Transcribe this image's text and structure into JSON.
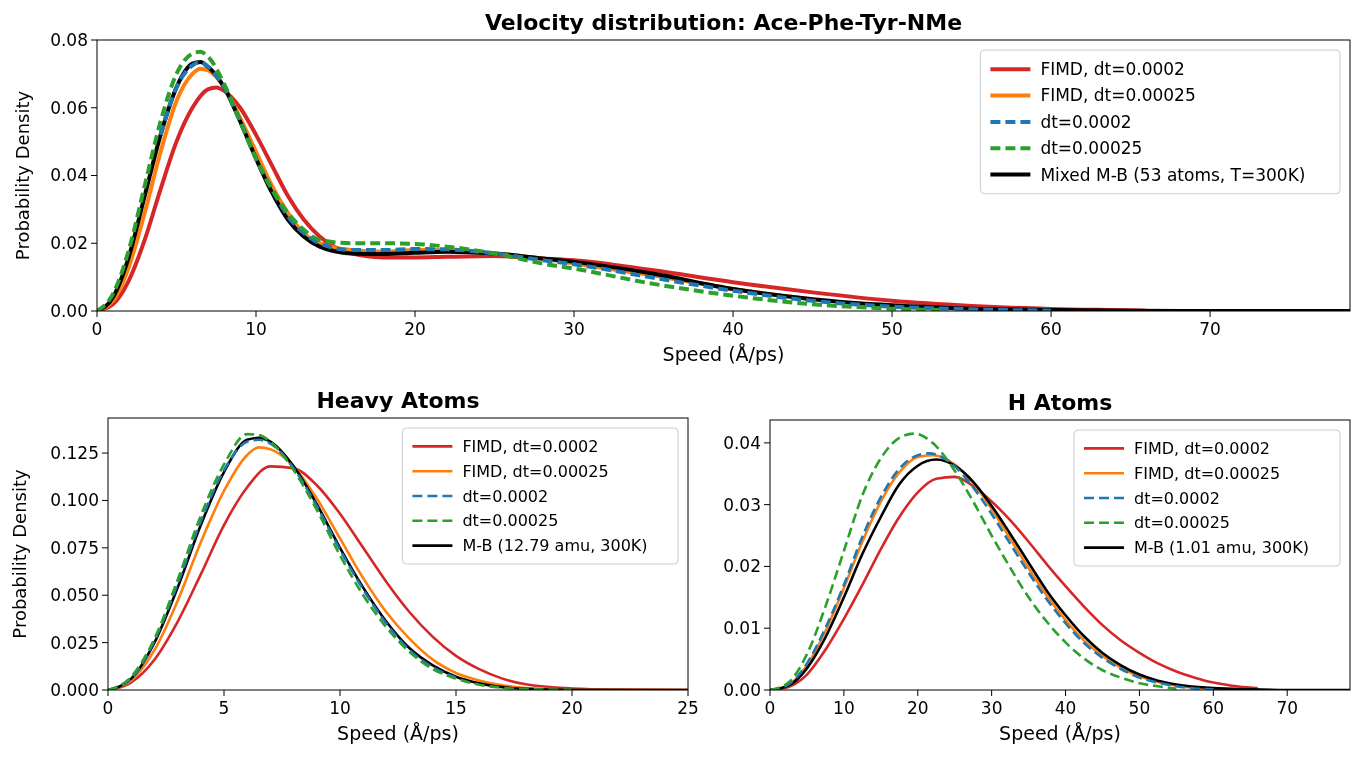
{
  "chart_data": [
    {
      "type": "line",
      "title": "Velocity distribution: Ace-Phe-Tyr-NMe",
      "xlabel": "Speed (Å/ps)",
      "ylabel": "Probability Density",
      "xlim": [
        0,
        78.8
      ],
      "ylim": [
        0,
        0.08
      ],
      "xticks": [
        0,
        10,
        20,
        30,
        40,
        50,
        60,
        70
      ],
      "yticks": [
        {
          "value": 0,
          "label": "0.00"
        },
        {
          "value": 0.02,
          "label": "0.02"
        },
        {
          "value": 0.04,
          "label": "0.04"
        },
        {
          "value": 0.06,
          "label": "0.06"
        },
        {
          "value": 0.08,
          "label": "0.08"
        }
      ],
      "grid": false,
      "legend": "top right",
      "marker": "none",
      "series": [
        {
          "name": "FIMD, dt=0.0002",
          "color": "#d62728",
          "line_style": "solid",
          "x": [
            0,
            1,
            2,
            3,
            4,
            5,
            6,
            7,
            7.5,
            8,
            9,
            10,
            11,
            12,
            13,
            14,
            16,
            18,
            20,
            22,
            25,
            28,
            30,
            35,
            40,
            45,
            50,
            55,
            60,
            65,
            66
          ],
          "values": [
            0,
            0.002,
            0.009,
            0.021,
            0.036,
            0.05,
            0.06,
            0.0655,
            0.066,
            0.065,
            0.06,
            0.052,
            0.043,
            0.034,
            0.027,
            0.022,
            0.017,
            0.0158,
            0.0158,
            0.016,
            0.0162,
            0.0155,
            0.015,
            0.012,
            0.0085,
            0.0055,
            0.003,
            0.0015,
            0.0006,
            0.0002,
            0.0001
          ]
        },
        {
          "name": "FIMD, dt=0.00025",
          "color": "#ff7f0e",
          "line_style": "solid",
          "x": [
            0,
            1,
            2,
            3,
            4,
            5,
            6,
            6.5,
            7,
            8,
            9,
            10,
            11,
            12,
            13,
            14,
            16,
            18,
            20,
            22,
            25,
            28,
            30,
            35,
            40,
            45
          ],
          "values": [
            0,
            0.003,
            0.013,
            0.029,
            0.047,
            0.062,
            0.07,
            0.0715,
            0.071,
            0.066,
            0.057,
            0.047,
            0.037,
            0.029,
            0.023,
            0.02,
            0.018,
            0.0175,
            0.018,
            0.018,
            0.017,
            0.0155,
            0.014,
            0.0105,
            0.0065,
            0.0035
          ]
        },
        {
          "name": "dt=0.0002",
          "color": "#1f77b4",
          "line_style": "dashed",
          "x": [
            4,
            5,
            6,
            6.5,
            7,
            8,
            9,
            10,
            11,
            12,
            13,
            14,
            16,
            18,
            20,
            22,
            25,
            28,
            30,
            35,
            40,
            45,
            50,
            55,
            60
          ],
          "values": [
            0.052,
            0.066,
            0.0725,
            0.0735,
            0.072,
            0.066,
            0.056,
            0.045,
            0.036,
            0.028,
            0.023,
            0.02,
            0.018,
            0.018,
            0.0183,
            0.0182,
            0.017,
            0.015,
            0.0138,
            0.0098,
            0.006,
            0.003,
            0.0013,
            0.0005,
            0.0001
          ]
        },
        {
          "name": "dt=0.00025",
          "color": "#2ca02c",
          "line_style": "dashed",
          "x": [
            0,
            1,
            2,
            3,
            4,
            5,
            6,
            6.5,
            7,
            8,
            9,
            10,
            11,
            12,
            13,
            14,
            16,
            18,
            20,
            22,
            25,
            28,
            30,
            35,
            40,
            45,
            50,
            53
          ],
          "values": [
            0,
            0.005,
            0.018,
            0.037,
            0.056,
            0.07,
            0.076,
            0.0765,
            0.075,
            0.067,
            0.056,
            0.045,
            0.036,
            0.029,
            0.024,
            0.021,
            0.02,
            0.02,
            0.0198,
            0.019,
            0.017,
            0.014,
            0.0125,
            0.008,
            0.0045,
            0.002,
            0.0007,
            0.0003
          ]
        },
        {
          "name": "Mixed M-B (53 atoms, T=300K)",
          "color": "#000000",
          "line_style": "solid",
          "x": [
            0,
            1,
            2,
            3,
            4,
            5,
            6,
            6.5,
            7,
            8,
            9,
            10,
            11,
            12,
            13,
            14,
            16,
            18,
            20,
            22,
            25,
            28,
            30,
            35,
            40,
            45,
            50,
            55,
            60,
            65,
            70,
            78.8
          ],
          "values": [
            0,
            0.004,
            0.016,
            0.034,
            0.052,
            0.066,
            0.073,
            0.0735,
            0.072,
            0.066,
            0.056,
            0.045,
            0.035,
            0.027,
            0.022,
            0.019,
            0.017,
            0.0168,
            0.0172,
            0.0175,
            0.017,
            0.0155,
            0.0145,
            0.011,
            0.0065,
            0.0035,
            0.0017,
            0.0007,
            0.0003,
            0.0001,
            0,
            0
          ]
        }
      ]
    },
    {
      "type": "line",
      "title": "Heavy Atoms",
      "xlabel": "Speed (Å/ps)",
      "ylabel": "Probability Density",
      "xlim": [
        0,
        25
      ],
      "ylim": [
        0,
        0.1435
      ],
      "xticks": [
        0,
        5,
        10,
        15,
        20,
        25
      ],
      "yticks": [
        {
          "value": 0,
          "label": "0.000"
        },
        {
          "value": 0.025,
          "label": "0.025"
        },
        {
          "value": 0.05,
          "label": "0.050"
        },
        {
          "value": 0.075,
          "label": "0.075"
        },
        {
          "value": 0.1,
          "label": "0.100"
        },
        {
          "value": 0.125,
          "label": "0.125"
        }
      ],
      "grid": false,
      "legend": "top right",
      "marker": "none",
      "series": [
        {
          "name": "FIMD, dt=0.0002",
          "color": "#d62728",
          "line_style": "solid",
          "x": [
            0,
            1,
            2,
            3,
            4,
            5,
            6,
            7,
            8,
            9,
            10,
            11,
            12,
            13,
            14,
            15,
            16,
            17,
            18,
            20,
            22,
            25
          ],
          "values": [
            0,
            0.004,
            0.016,
            0.036,
            0.061,
            0.087,
            0.107,
            0.118,
            0.117,
            0.108,
            0.093,
            0.075,
            0.057,
            0.041,
            0.028,
            0.018,
            0.011,
            0.006,
            0.003,
            0.0008,
            0.0002,
            0
          ]
        },
        {
          "name": "FIMD, dt=0.00025",
          "color": "#ff7f0e",
          "line_style": "solid",
          "x": [
            0,
            1,
            2,
            3,
            4,
            5,
            6,
            6.5,
            7,
            8,
            9,
            10,
            11,
            12,
            13,
            14,
            15,
            16,
            17,
            18,
            20,
            25
          ],
          "values": [
            0,
            0.005,
            0.021,
            0.047,
            0.078,
            0.105,
            0.124,
            0.128,
            0.127,
            0.118,
            0.101,
            0.08,
            0.059,
            0.041,
            0.027,
            0.016,
            0.009,
            0.005,
            0.0025,
            0.001,
            0.0002,
            0
          ]
        },
        {
          "name": "dt=0.0002",
          "color": "#1f77b4",
          "line_style": "dashed",
          "x": [
            0,
            1,
            2,
            3,
            4,
            5,
            6,
            6.5,
            7,
            8,
            9,
            10,
            11,
            12,
            13,
            14,
            15
          ],
          "values": [
            0,
            0.006,
            0.026,
            0.056,
            0.089,
            0.116,
            0.131,
            0.132,
            0.13,
            0.117,
            0.097,
            0.074,
            0.053,
            0.035,
            0.021,
            0.012,
            0.0065
          ]
        },
        {
          "name": "dt=0.00025",
          "color": "#2ca02c",
          "line_style": "dashed",
          "x": [
            0,
            1,
            2,
            3,
            4,
            5,
            6,
            6.5,
            7,
            8,
            9,
            10,
            11,
            12,
            13,
            14,
            15,
            16,
            18,
            20
          ],
          "values": [
            0,
            0.007,
            0.027,
            0.058,
            0.092,
            0.119,
            0.135,
            0.1345,
            0.131,
            0.116,
            0.095,
            0.071,
            0.05,
            0.033,
            0.02,
            0.011,
            0.006,
            0.0028,
            0.0005,
            0.0001
          ]
        },
        {
          "name": "M-B (12.79 amu, 300K)",
          "color": "#000000",
          "line_style": "solid",
          "x": [
            0,
            1,
            2,
            3,
            4,
            5,
            6,
            6.5,
            7,
            8,
            9,
            10,
            11,
            12,
            13,
            14,
            15,
            16,
            17,
            18,
            20,
            25
          ],
          "values": [
            0,
            0.006,
            0.025,
            0.054,
            0.087,
            0.115,
            0.132,
            0.133,
            0.131,
            0.118,
            0.098,
            0.075,
            0.054,
            0.036,
            0.022,
            0.013,
            0.007,
            0.0035,
            0.0015,
            0.0006,
            0.0001,
            0
          ]
        }
      ]
    },
    {
      "type": "line",
      "title": "H Atoms",
      "xlabel": "Speed (Å/ps)",
      "xlim": [
        0,
        78.5
      ],
      "ylim": [
        0,
        0.0437
      ],
      "xticks": [
        0,
        10,
        20,
        30,
        40,
        50,
        60,
        70
      ],
      "yticks": [
        {
          "value": 0,
          "label": "0.00"
        },
        {
          "value": 0.01,
          "label": "0.01"
        },
        {
          "value": 0.02,
          "label": "0.02"
        },
        {
          "value": 0.03,
          "label": "0.03"
        },
        {
          "value": 0.04,
          "label": "0.04"
        }
      ],
      "grid": false,
      "legend": "top right",
      "marker": "none",
      "series": [
        {
          "name": "FIMD, dt=0.0002",
          "color": "#d62728",
          "line_style": "solid",
          "x": [
            0,
            2.5,
            5,
            7.5,
            10,
            12.5,
            15,
            17.5,
            20,
            22.5,
            25,
            27.5,
            30,
            32.5,
            35,
            37.5,
            40,
            42.5,
            45,
            47.5,
            50,
            52.5,
            55,
            57.5,
            60,
            62.5,
            65,
            66
          ],
          "values": [
            0,
            0.0005,
            0.0025,
            0.0065,
            0.0115,
            0.017,
            0.0228,
            0.028,
            0.032,
            0.0342,
            0.0345,
            0.033,
            0.0305,
            0.0275,
            0.024,
            0.0203,
            0.0168,
            0.0135,
            0.0105,
            0.008,
            0.006,
            0.0043,
            0.003,
            0.002,
            0.0012,
            0.0007,
            0.0004,
            0.0003
          ]
        },
        {
          "name": "FIMD, dt=0.00025",
          "color": "#ff7f0e",
          "line_style": "solid",
          "x": [
            0,
            2.5,
            5,
            7.5,
            10,
            12.5,
            15,
            17.5,
            20,
            22,
            25,
            27.5,
            30,
            32.5,
            35,
            37.5,
            40,
            42.5,
            45,
            47.5,
            50,
            52.5,
            55,
            60,
            63
          ],
          "values": [
            0,
            0.0008,
            0.004,
            0.0095,
            0.0165,
            0.024,
            0.0305,
            0.0352,
            0.0377,
            0.038,
            0.0365,
            0.0335,
            0.0293,
            0.0245,
            0.0197,
            0.0152,
            0.0113,
            0.008,
            0.0055,
            0.0036,
            0.0022,
            0.0013,
            0.0007,
            0.0002,
            0.0001
          ]
        },
        {
          "name": "dt=0.0002",
          "color": "#1f77b4",
          "line_style": "dashed",
          "x": [
            0,
            2.5,
            5,
            7.5,
            10,
            12.5,
            15,
            17.5,
            20,
            21.5,
            25,
            27.5,
            30,
            32.5,
            35,
            37.5,
            40,
            42.5,
            45,
            47.5,
            50,
            52.5,
            55,
            60
          ],
          "values": [
            0,
            0.0009,
            0.0043,
            0.01,
            0.017,
            0.0248,
            0.0312,
            0.0358,
            0.038,
            0.0383,
            0.0362,
            0.0328,
            0.0285,
            0.0237,
            0.019,
            0.0146,
            0.0108,
            0.0076,
            0.0052,
            0.0034,
            0.002,
            0.0012,
            0.0006,
            0.0001
          ]
        },
        {
          "name": "dt=0.00025",
          "color": "#2ca02c",
          "line_style": "dashed",
          "x": [
            0,
            2.5,
            5,
            7.5,
            10,
            12.5,
            15,
            17.5,
            19.5,
            22,
            25,
            27.5,
            30,
            32.5,
            35,
            37.5,
            40,
            42.5,
            45,
            47.5,
            50,
            52.5,
            55
          ],
          "values": [
            0,
            0.0012,
            0.0058,
            0.0135,
            0.0225,
            0.0315,
            0.0375,
            0.0408,
            0.0415,
            0.04,
            0.0355,
            0.0305,
            0.025,
            0.0198,
            0.015,
            0.011,
            0.0077,
            0.0051,
            0.0032,
            0.002,
            0.0011,
            0.0006,
            0.0002
          ]
        },
        {
          "name": "M-B (1.01 amu, 300K)",
          "color": "#000000",
          "line_style": "solid",
          "x": [
            0,
            2.5,
            5,
            7.5,
            10,
            12.5,
            15,
            17.5,
            20,
            22.5,
            25,
            27.5,
            30,
            32.5,
            35,
            37.5,
            40,
            42.5,
            45,
            47.5,
            50,
            52.5,
            55,
            60,
            65,
            70,
            78.5
          ],
          "values": [
            0,
            0.0007,
            0.0035,
            0.0085,
            0.015,
            0.022,
            0.028,
            0.0333,
            0.0363,
            0.0373,
            0.0363,
            0.0337,
            0.0298,
            0.0253,
            0.0206,
            0.016,
            0.0121,
            0.0087,
            0.006,
            0.004,
            0.0025,
            0.0015,
            0.0009,
            0.0003,
            0.0001,
            0,
            0
          ]
        }
      ]
    }
  ]
}
